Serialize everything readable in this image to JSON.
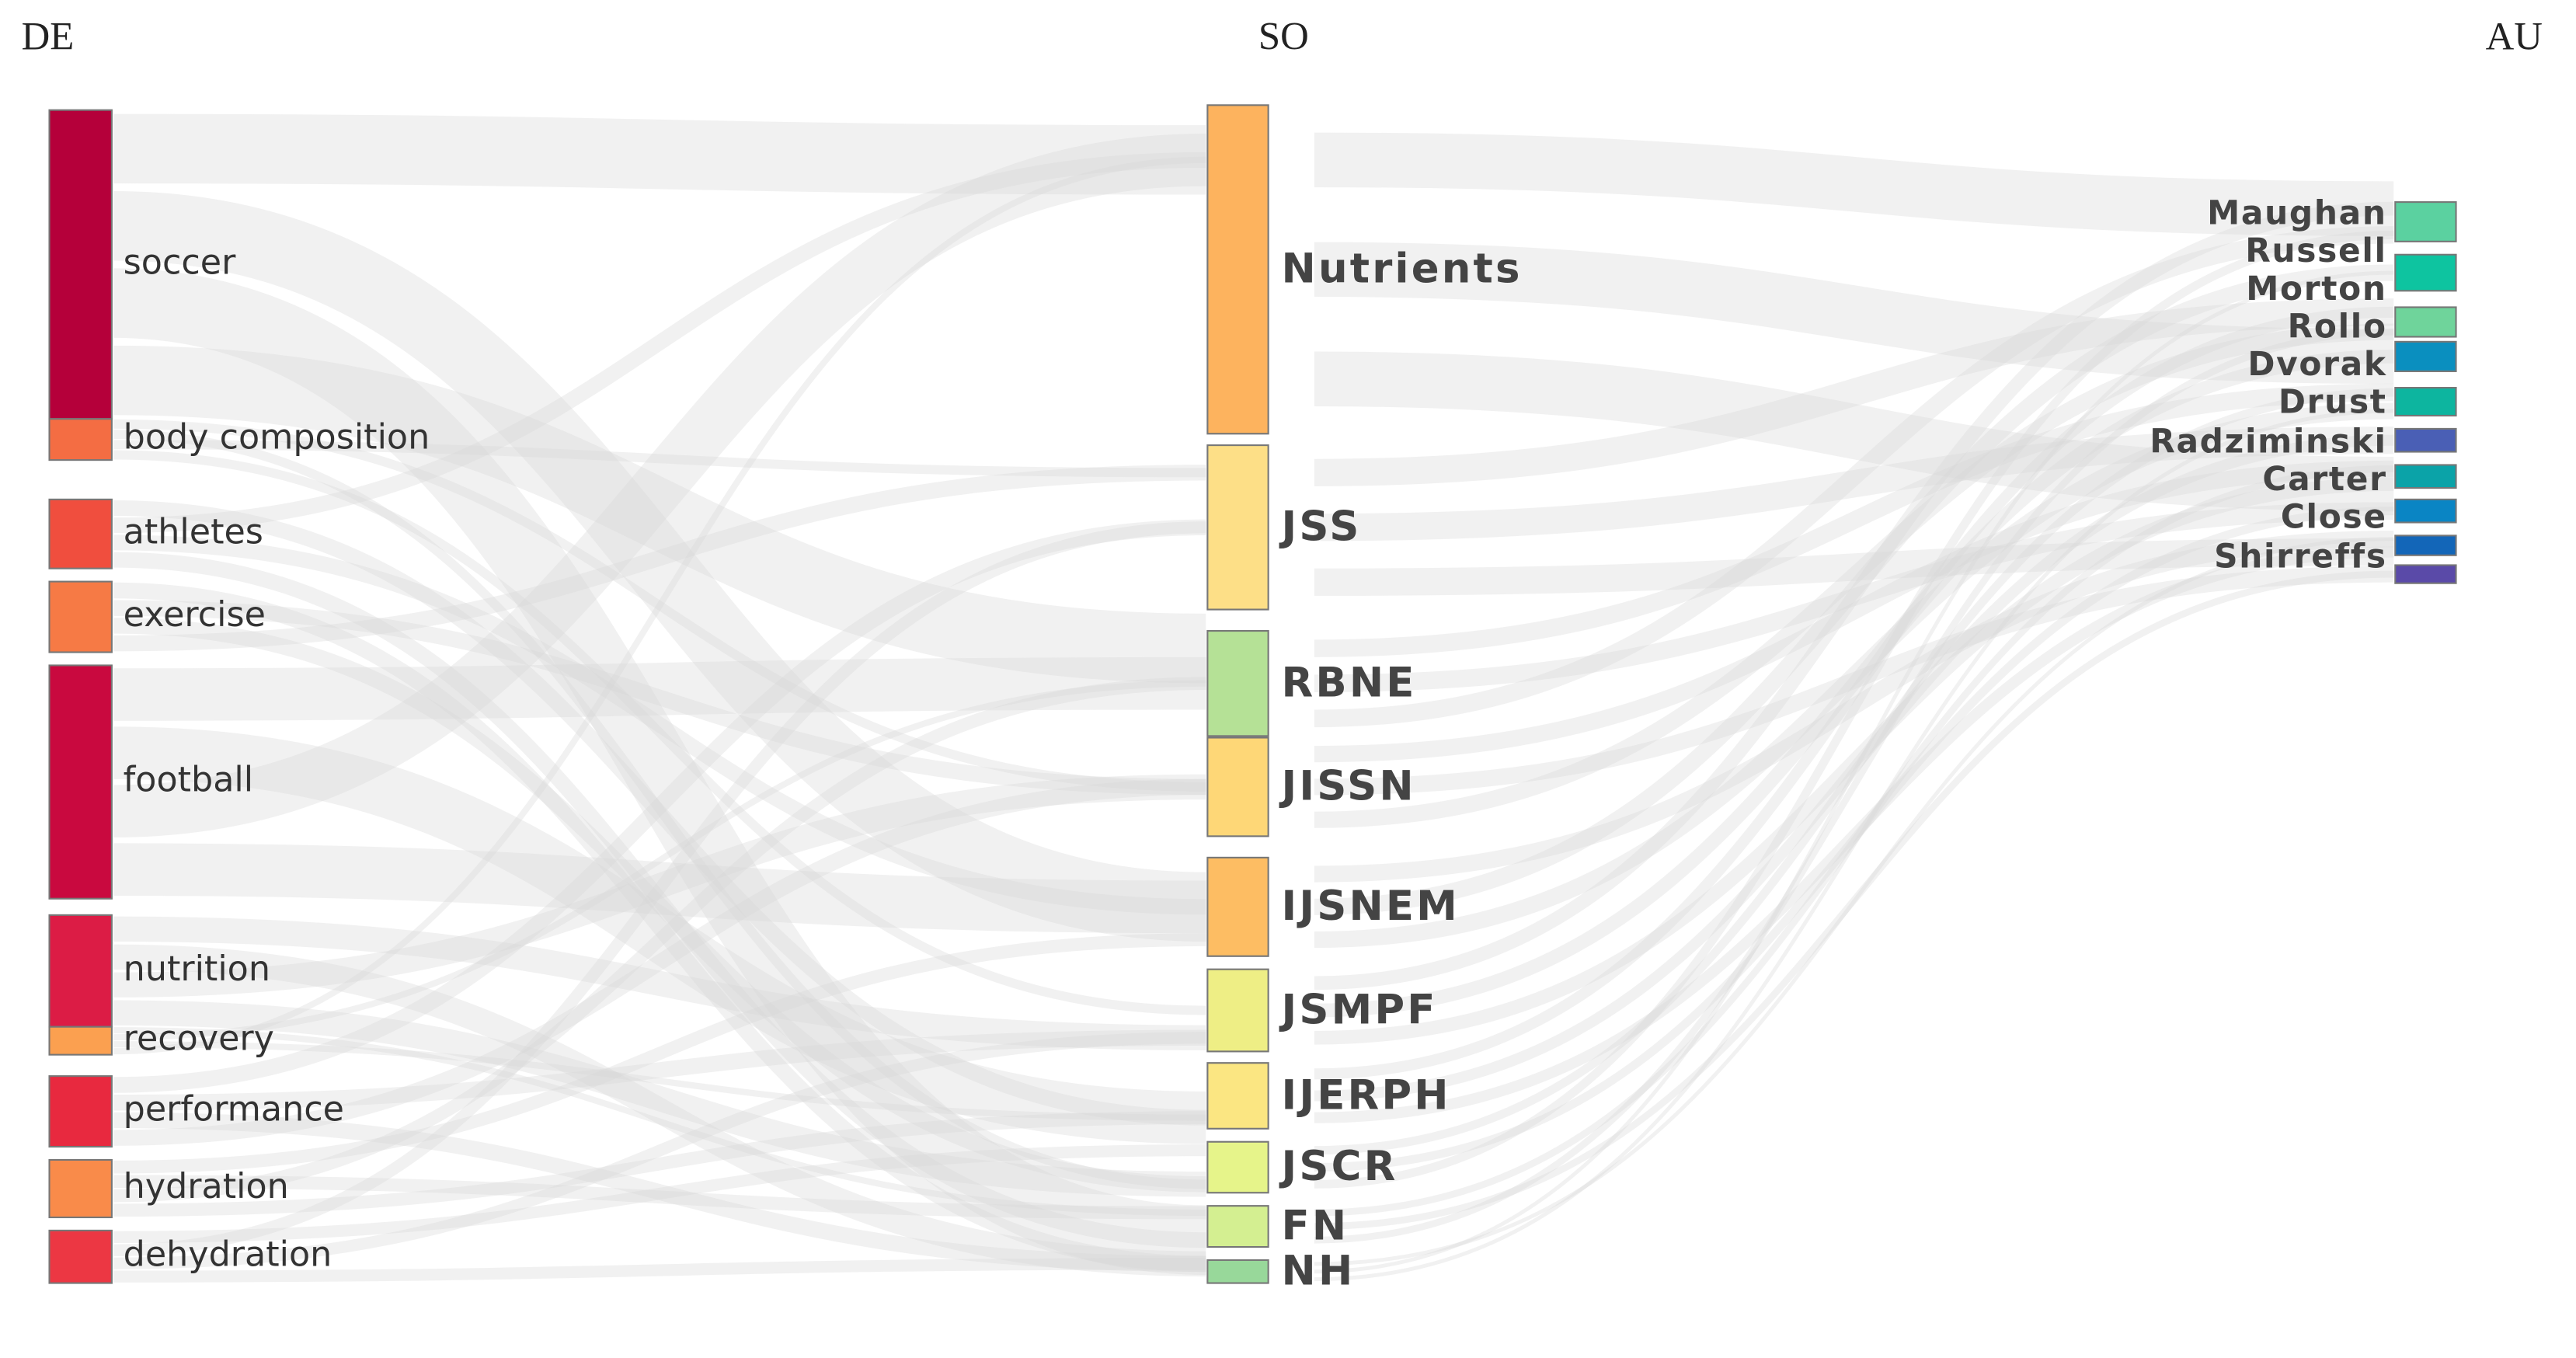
{
  "columns": [
    {
      "header": "DE",
      "nodes": [
        "soccer",
        "body composition",
        "athletes",
        "exercise",
        "football",
        "nutrition",
        "recovery",
        "performance",
        "hydration",
        "dehydration"
      ]
    },
    {
      "header": "SO",
      "nodes": [
        "Nutrients",
        "JSS",
        "RBNE",
        "JISSN",
        "IJSNEM",
        "JSMPF",
        "IJERPH",
        "JSCR",
        "FN",
        "NH"
      ]
    },
    {
      "header": "AU",
      "nodes": [
        "Maughan",
        "Russell",
        "Morton",
        "Rollo",
        "Dvorak",
        "Drust",
        "Radziminski",
        "Carter",
        "Close",
        "Shirreffs"
      ]
    }
  ]
}
